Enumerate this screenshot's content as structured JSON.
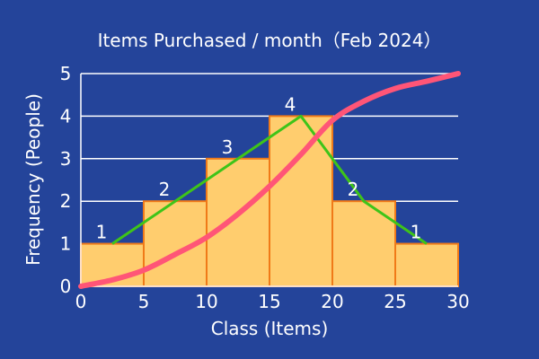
{
  "chart_data": {
    "type": "bar",
    "title": "Items Purchased / month（Feb 2024）",
    "xlabel": "Class (Items)",
    "ylabel": "Frequency (People)",
    "xlim": [
      0,
      30
    ],
    "ylim": [
      0,
      5
    ],
    "x_ticks": [
      "0",
      "5",
      "10",
      "15",
      "20",
      "25",
      "30"
    ],
    "y_ticks": [
      "0",
      "1",
      "2",
      "3",
      "4",
      "5"
    ],
    "grid": true,
    "bins": [
      {
        "from": 0,
        "to": 5,
        "value": 1,
        "label": "1"
      },
      {
        "from": 5,
        "to": 10,
        "value": 2,
        "label": "2"
      },
      {
        "from": 10,
        "to": 15,
        "value": 3,
        "label": "3"
      },
      {
        "from": 15,
        "to": 20,
        "value": 4,
        "label": "4"
      },
      {
        "from": 20,
        "to": 25,
        "value": 2,
        "label": "2"
      },
      {
        "from": 25,
        "to": 30,
        "value": 1,
        "label": "1"
      }
    ],
    "frequency_polygon": {
      "x": [
        2.5,
        7.5,
        12.5,
        17.5,
        22.5,
        27.5
      ],
      "y": [
        1,
        2,
        3,
        4,
        2,
        1
      ]
    },
    "smooth_curve": {
      "x": [
        0,
        2.5,
        5,
        7.5,
        10,
        12.5,
        15,
        17.5,
        20,
        22.5,
        25,
        27.5,
        30
      ],
      "y": [
        0,
        0.15,
        0.38,
        0.75,
        1.15,
        1.7,
        2.35,
        3.1,
        3.9,
        4.35,
        4.65,
        4.82,
        5.0
      ]
    },
    "colors": {
      "background": "#24449a",
      "bar_fill": "#ffcd6e",
      "bar_stroke": "#f07a18",
      "polygon": "#3ec419",
      "curve": "#ff5577",
      "grid": "#ffffff",
      "text": "#ffffff"
    }
  }
}
